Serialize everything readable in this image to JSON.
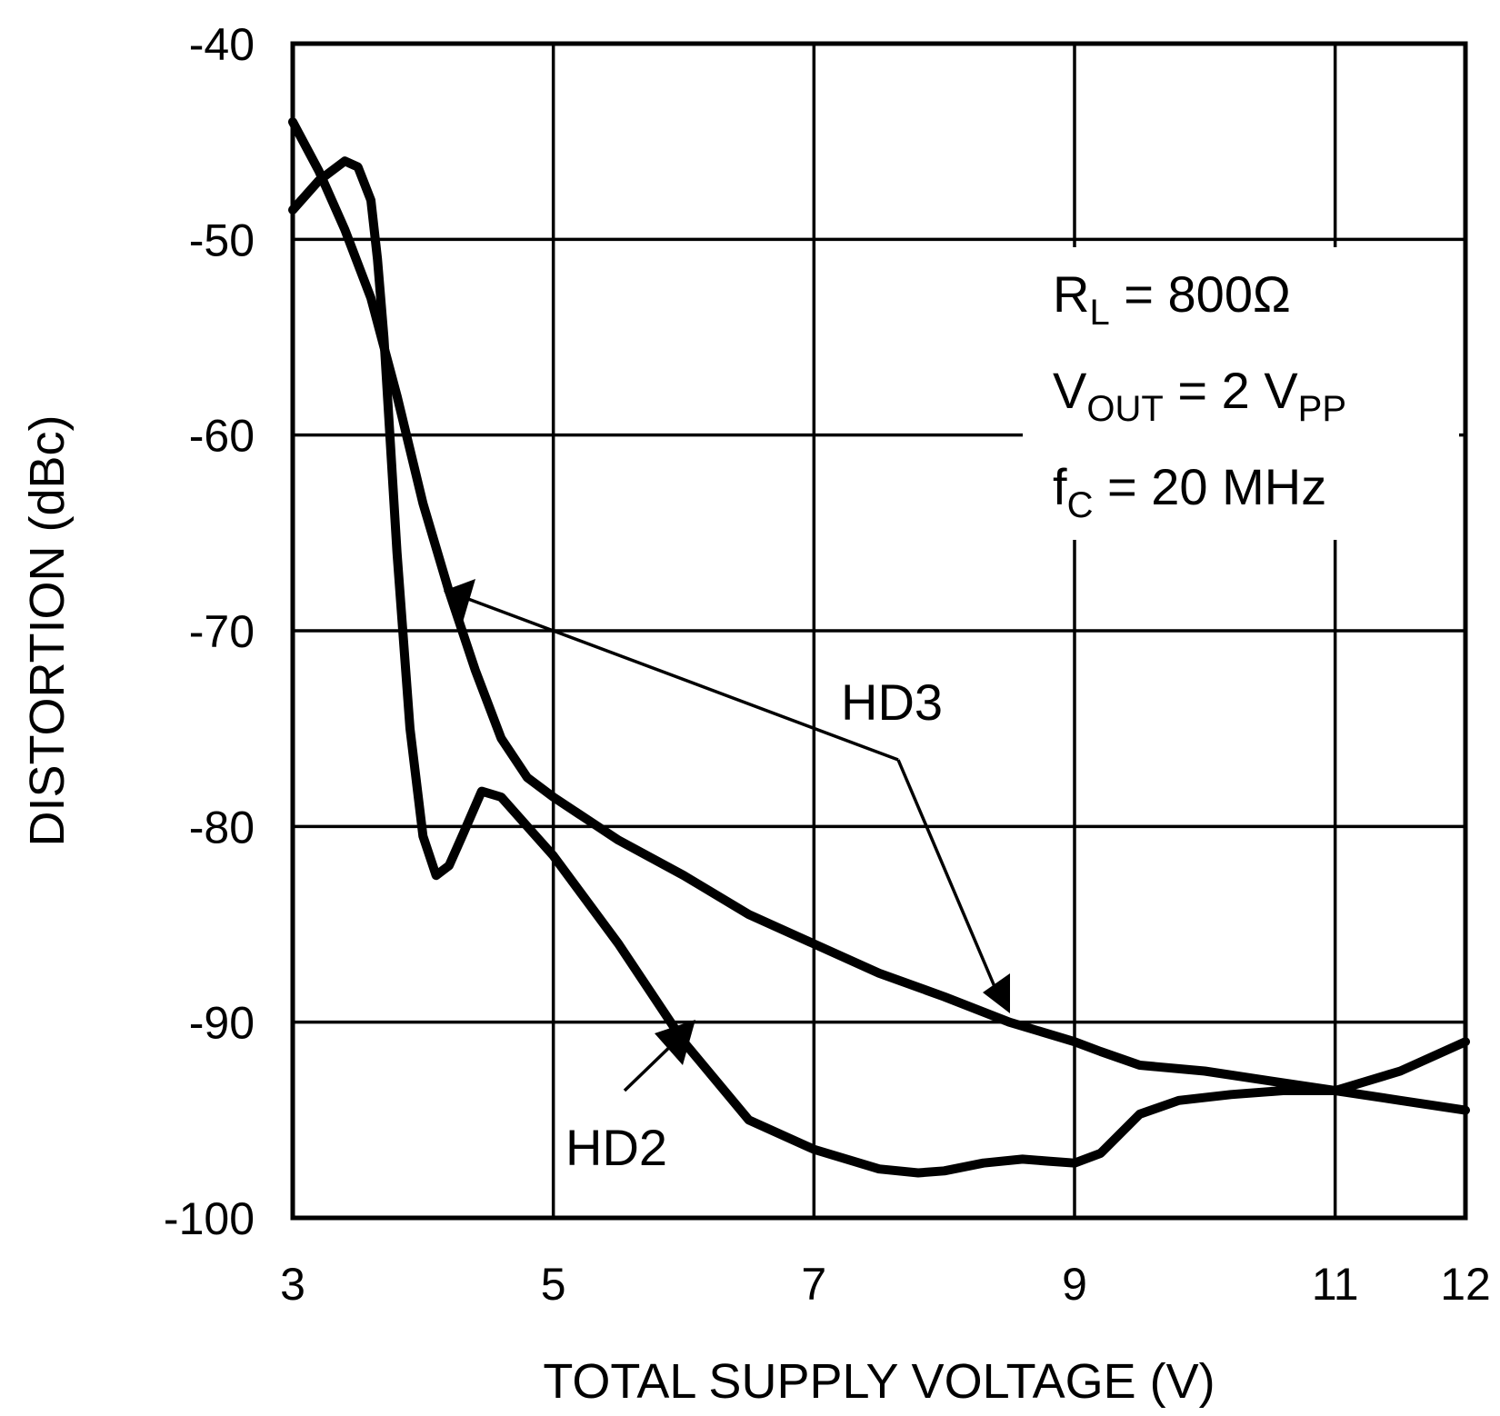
{
  "chart_data": {
    "type": "line",
    "title": "",
    "xlabel": "TOTAL SUPPLY VOLTAGE (V)",
    "ylabel": "DISTORTION (dBc)",
    "xlim": [
      3,
      12
    ],
    "ylim": [
      -100,
      -40
    ],
    "x_ticks": [
      3,
      5,
      7,
      9,
      11,
      12
    ],
    "y_ticks": [
      -40,
      -50,
      -60,
      -70,
      -80,
      -90,
      -100
    ],
    "x_tick_labels": [
      "3",
      "5",
      "7",
      "9",
      "11",
      "12"
    ],
    "y_tick_labels": [
      "-40",
      "-50",
      "-60",
      "-70",
      "-80",
      "-90",
      "-100"
    ],
    "grid": true,
    "series": [
      {
        "name": "HD2",
        "x": [
          3.0,
          3.2,
          3.4,
          3.5,
          3.6,
          3.65,
          3.7,
          3.8,
          3.9,
          4.0,
          4.1,
          4.2,
          4.3,
          4.45,
          4.6,
          4.8,
          5.0,
          5.5,
          6.0,
          6.5,
          7.0,
          7.5,
          7.8,
          8.0,
          8.3,
          8.6,
          8.8,
          9.0,
          9.2,
          9.5,
          9.8,
          10.2,
          10.6,
          11.0,
          11.5,
          12.0
        ],
        "y": [
          -48.5,
          -47.0,
          -46.0,
          -46.3,
          -48.0,
          -51.0,
          -55.0,
          -66.0,
          -75.0,
          -80.5,
          -82.5,
          -82.0,
          -80.5,
          -78.2,
          -78.5,
          -80.0,
          -81.5,
          -86.0,
          -91.0,
          -95.0,
          -96.5,
          -97.5,
          -97.7,
          -97.6,
          -97.2,
          -97.0,
          -97.1,
          -97.2,
          -96.7,
          -94.7,
          -94.0,
          -93.7,
          -93.5,
          -93.5,
          -92.5,
          -91.0
        ]
      },
      {
        "name": "HD3",
        "x": [
          3.0,
          3.2,
          3.4,
          3.6,
          3.8,
          4.0,
          4.2,
          4.4,
          4.6,
          4.8,
          5.0,
          5.5,
          6.0,
          6.5,
          7.0,
          7.5,
          8.0,
          8.5,
          9.0,
          9.2,
          9.5,
          10.0,
          10.5,
          11.0,
          11.5,
          12.0
        ],
        "y": [
          -44.0,
          -46.5,
          -49.5,
          -53.0,
          -58.0,
          -63.5,
          -68.0,
          -72.0,
          -75.5,
          -77.5,
          -78.5,
          -80.7,
          -82.5,
          -84.5,
          -86.0,
          -87.5,
          -88.7,
          -90.0,
          -91.0,
          -91.5,
          -92.2,
          -92.5,
          -93.0,
          -93.5,
          -94.0,
          -94.5
        ]
      }
    ],
    "annotations": {
      "hd3_label": "HD3",
      "hd2_label": "HD2",
      "rl_main": "R",
      "rl_sub": "L",
      "rl_rest": " = 800Ω",
      "vout_main": "V",
      "vout_sub": "OUT",
      "vout_rest": " = 2 V",
      "vout_rest_sub": "PP",
      "fc_main": "f",
      "fc_sub": "C",
      "fc_rest": " = 20 MHz"
    }
  }
}
